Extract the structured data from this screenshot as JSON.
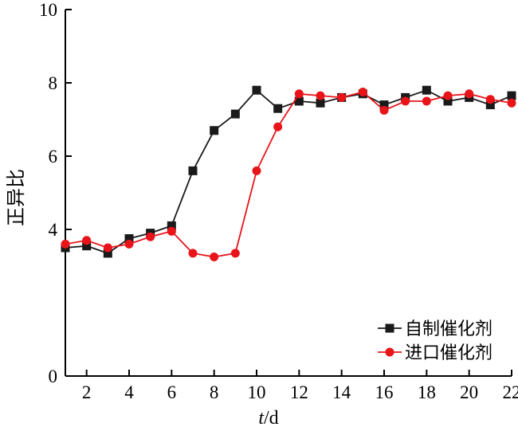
{
  "chart_data": {
    "type": "line",
    "xlabel_italic": "t",
    "xlabel_rest": "/d",
    "ylabel": "正异比",
    "xlim": [
      1,
      22
    ],
    "ylim": [
      0,
      10
    ],
    "x_ticks": [
      2,
      4,
      6,
      8,
      10,
      12,
      14,
      16,
      18,
      20,
      22
    ],
    "y_ticks": [
      0,
      4,
      6,
      8,
      10
    ],
    "legend_position": "bottom-right",
    "grid": false,
    "series": [
      {
        "name": "自制催化剂",
        "color": "#1a1a1a",
        "marker": "square",
        "x": [
          1,
          2,
          3,
          4,
          5,
          6,
          7,
          8,
          9,
          10,
          11,
          12,
          13,
          14,
          15,
          16,
          17,
          18,
          19,
          20,
          21,
          22
        ],
        "y": [
          3.5,
          3.55,
          3.35,
          3.75,
          3.9,
          4.1,
          5.6,
          6.7,
          7.15,
          7.8,
          7.3,
          7.5,
          7.45,
          7.6,
          7.7,
          7.4,
          7.6,
          7.8,
          7.5,
          7.6,
          7.4,
          7.65
        ]
      },
      {
        "name": "进口催化剂",
        "color": "#e8141a",
        "marker": "circle",
        "x": [
          1,
          2,
          3,
          4,
          5,
          6,
          7,
          8,
          9,
          10,
          11,
          12,
          13,
          14,
          15,
          16,
          17,
          18,
          19,
          20,
          21,
          22
        ],
        "y": [
          3.6,
          3.7,
          3.5,
          3.6,
          3.8,
          3.95,
          3.35,
          3.25,
          3.35,
          5.6,
          6.8,
          7.7,
          7.65,
          7.6,
          7.75,
          7.25,
          7.5,
          7.5,
          7.65,
          7.7,
          7.55,
          7.45
        ]
      }
    ]
  }
}
